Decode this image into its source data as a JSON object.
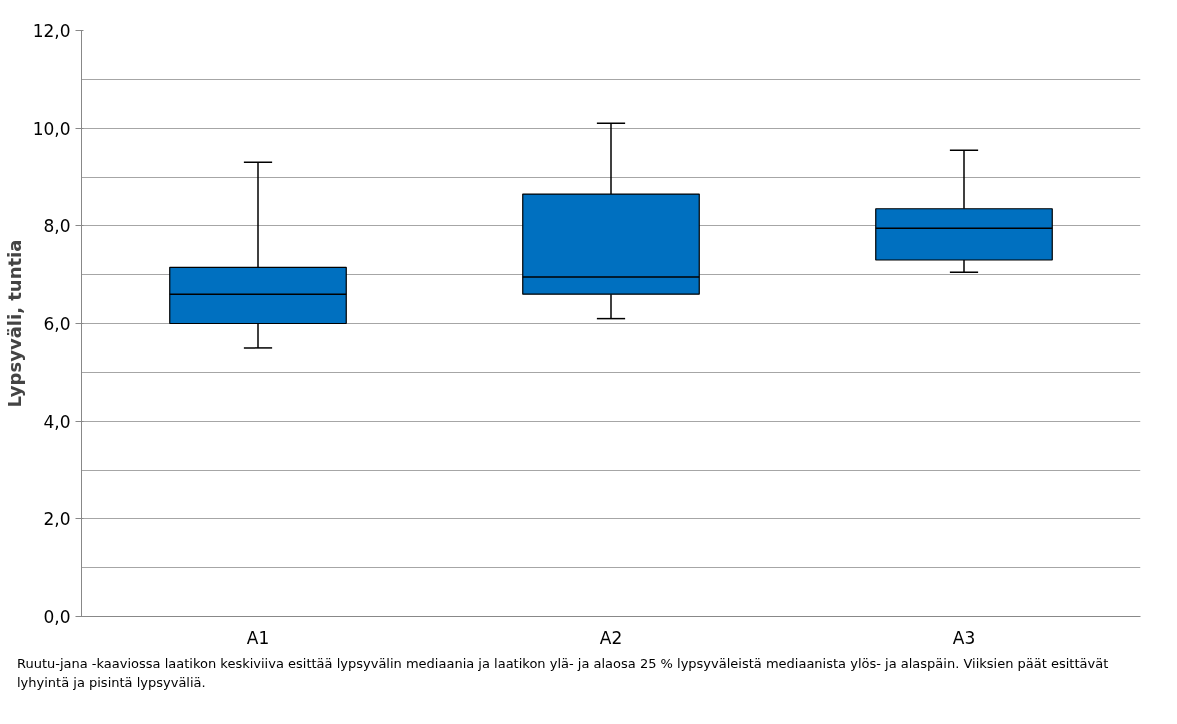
{
  "chart_data": {
    "type": "box",
    "ylabel": "Lypsyväli, tuntia",
    "categories": [
      "A1",
      "A2",
      "A3"
    ],
    "series": [
      {
        "color": "#0070c0",
        "boxes": [
          {
            "low": 5.5,
            "q1": 6.0,
            "median": 6.6,
            "q3": 7.15,
            "high": 9.3
          },
          {
            "low": 6.1,
            "q1": 6.6,
            "median": 6.95,
            "q3": 8.65,
            "high": 10.1
          },
          {
            "low": 7.05,
            "q1": 7.3,
            "median": 7.95,
            "q3": 8.35,
            "high": 9.55
          }
        ]
      }
    ],
    "ylim": [
      0,
      12
    ],
    "yticks": [
      {
        "value": 0,
        "label": "0,0"
      },
      {
        "value": 1,
        "label": null
      },
      {
        "value": 2,
        "label": "2,0"
      },
      {
        "value": 3,
        "label": null
      },
      {
        "value": 4,
        "label": "4,0"
      },
      {
        "value": 5,
        "label": null
      },
      {
        "value": 6,
        "label": "6,0"
      },
      {
        "value": 7,
        "label": null
      },
      {
        "value": 8,
        "label": "8,0"
      },
      {
        "value": 9,
        "label": null
      },
      {
        "value": 10,
        "label": "10,0"
      },
      {
        "value": 11,
        "label": null
      },
      {
        "value": 12,
        "label": "12,0"
      }
    ],
    "grid": "y",
    "annotations": [
      "Ruutu-jana -kaaviossa laatikon keskiviiva esittää lypsyvälin mediaania ja laatikon ylä- ja alaosa 25 % lypsyväleistä mediaanista ylös- ja alaspäin. Viiksien päät esittävät lyhyintä ja pisintä lypsyväliä."
    ]
  }
}
